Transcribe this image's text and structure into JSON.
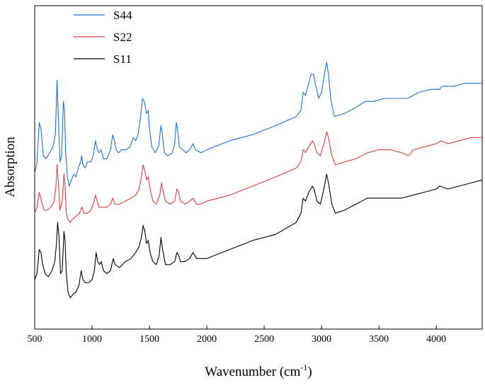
{
  "chart_data": {
    "type": "line",
    "title": "",
    "xlabel": "Wavenumber (cm",
    "xlabel_sup": "-1",
    "xlabel_end": ")",
    "ylabel": "Absorption",
    "xlim": [
      500,
      4400
    ],
    "ylim": [
      0,
      1
    ],
    "x_ticks": [
      "500",
      "1000",
      "1500",
      "2000",
      "2500",
      "3000",
      "3500",
      "4000"
    ],
    "grid": false,
    "legend_position": "top-left",
    "series": [
      {
        "name": "S44",
        "color": "#1f6fd6",
        "points": [
          [
            500,
            0.49
          ],
          [
            520,
            0.53
          ],
          [
            540,
            0.66
          ],
          [
            555,
            0.64
          ],
          [
            575,
            0.55
          ],
          [
            600,
            0.54
          ],
          [
            630,
            0.56
          ],
          [
            660,
            0.58
          ],
          [
            680,
            0.62
          ],
          [
            695,
            0.8
          ],
          [
            705,
            0.69
          ],
          [
            720,
            0.53
          ],
          [
            735,
            0.55
          ],
          [
            750,
            0.73
          ],
          [
            760,
            0.7
          ],
          [
            770,
            0.56
          ],
          [
            785,
            0.48
          ],
          [
            800,
            0.45
          ],
          [
            820,
            0.47
          ],
          [
            840,
            0.49
          ],
          [
            860,
            0.48
          ],
          [
            880,
            0.51
          ],
          [
            900,
            0.53
          ],
          [
            910,
            0.55
          ],
          [
            920,
            0.52
          ],
          [
            940,
            0.51
          ],
          [
            960,
            0.53
          ],
          [
            990,
            0.53
          ],
          [
            1010,
            0.55
          ],
          [
            1030,
            0.6
          ],
          [
            1040,
            0.58
          ],
          [
            1060,
            0.56
          ],
          [
            1080,
            0.57
          ],
          [
            1100,
            0.54
          ],
          [
            1130,
            0.54
          ],
          [
            1160,
            0.57
          ],
          [
            1180,
            0.62
          ],
          [
            1195,
            0.6
          ],
          [
            1210,
            0.57
          ],
          [
            1230,
            0.56
          ],
          [
            1260,
            0.57
          ],
          [
            1300,
            0.57
          ],
          [
            1330,
            0.58
          ],
          [
            1360,
            0.61
          ],
          [
            1380,
            0.6
          ],
          [
            1400,
            0.62
          ],
          [
            1420,
            0.67
          ],
          [
            1440,
            0.74
          ],
          [
            1455,
            0.73
          ],
          [
            1475,
            0.69
          ],
          [
            1490,
            0.7
          ],
          [
            1500,
            0.64
          ],
          [
            1520,
            0.58
          ],
          [
            1550,
            0.56
          ],
          [
            1580,
            0.58
          ],
          [
            1600,
            0.65
          ],
          [
            1610,
            0.63
          ],
          [
            1630,
            0.56
          ],
          [
            1660,
            0.55
          ],
          [
            1700,
            0.56
          ],
          [
            1720,
            0.59
          ],
          [
            1735,
            0.66
          ],
          [
            1745,
            0.64
          ],
          [
            1760,
            0.58
          ],
          [
            1790,
            0.57
          ],
          [
            1820,
            0.56
          ],
          [
            1850,
            0.57
          ],
          [
            1880,
            0.59
          ],
          [
            1900,
            0.57
          ],
          [
            1950,
            0.56
          ],
          [
            2000,
            0.57
          ],
          [
            2200,
            0.6
          ],
          [
            2400,
            0.62
          ],
          [
            2600,
            0.65
          ],
          [
            2780,
            0.68
          ],
          [
            2820,
            0.7
          ],
          [
            2840,
            0.76
          ],
          [
            2860,
            0.75
          ],
          [
            2880,
            0.78
          ],
          [
            2910,
            0.82
          ],
          [
            2930,
            0.82
          ],
          [
            2950,
            0.78
          ],
          [
            2975,
            0.74
          ],
          [
            3000,
            0.76
          ],
          [
            3025,
            0.82
          ],
          [
            3045,
            0.86
          ],
          [
            3060,
            0.82
          ],
          [
            3080,
            0.74
          ],
          [
            3110,
            0.68
          ],
          [
            3200,
            0.69
          ],
          [
            3300,
            0.71
          ],
          [
            3380,
            0.73
          ],
          [
            3450,
            0.73
          ],
          [
            3550,
            0.74
          ],
          [
            3650,
            0.74
          ],
          [
            3750,
            0.74
          ],
          [
            3850,
            0.76
          ],
          [
            3950,
            0.77
          ],
          [
            4030,
            0.77
          ],
          [
            4050,
            0.78
          ],
          [
            4070,
            0.78
          ],
          [
            4150,
            0.78
          ],
          [
            4250,
            0.79
          ],
          [
            4300,
            0.79
          ],
          [
            4350,
            0.79
          ],
          [
            4400,
            0.79
          ]
        ]
      },
      {
        "name": "S22",
        "color": "#e03c3c",
        "points": [
          [
            500,
            0.36
          ],
          [
            520,
            0.38
          ],
          [
            540,
            0.43
          ],
          [
            560,
            0.4
          ],
          [
            580,
            0.37
          ],
          [
            610,
            0.37
          ],
          [
            640,
            0.38
          ],
          [
            670,
            0.4
          ],
          [
            685,
            0.45
          ],
          [
            695,
            0.52
          ],
          [
            705,
            0.47
          ],
          [
            720,
            0.37
          ],
          [
            740,
            0.4
          ],
          [
            755,
            0.49
          ],
          [
            765,
            0.45
          ],
          [
            775,
            0.36
          ],
          [
            790,
            0.34
          ],
          [
            810,
            0.33
          ],
          [
            830,
            0.34
          ],
          [
            860,
            0.35
          ],
          [
            890,
            0.36
          ],
          [
            910,
            0.38
          ],
          [
            930,
            0.36
          ],
          [
            960,
            0.36
          ],
          [
            990,
            0.37
          ],
          [
            1010,
            0.39
          ],
          [
            1030,
            0.42
          ],
          [
            1045,
            0.4
          ],
          [
            1060,
            0.38
          ],
          [
            1090,
            0.38
          ],
          [
            1130,
            0.38
          ],
          [
            1160,
            0.39
          ],
          [
            1180,
            0.41
          ],
          [
            1200,
            0.39
          ],
          [
            1240,
            0.39
          ],
          [
            1290,
            0.4
          ],
          [
            1340,
            0.41
          ],
          [
            1380,
            0.42
          ],
          [
            1410,
            0.44
          ],
          [
            1430,
            0.48
          ],
          [
            1445,
            0.52
          ],
          [
            1460,
            0.5
          ],
          [
            1475,
            0.47
          ],
          [
            1490,
            0.48
          ],
          [
            1505,
            0.44
          ],
          [
            1530,
            0.4
          ],
          [
            1560,
            0.39
          ],
          [
            1590,
            0.42
          ],
          [
            1605,
            0.46
          ],
          [
            1620,
            0.43
          ],
          [
            1640,
            0.4
          ],
          [
            1680,
            0.39
          ],
          [
            1720,
            0.4
          ],
          [
            1740,
            0.44
          ],
          [
            1755,
            0.43
          ],
          [
            1770,
            0.4
          ],
          [
            1810,
            0.39
          ],
          [
            1850,
            0.4
          ],
          [
            1880,
            0.41
          ],
          [
            1910,
            0.39
          ],
          [
            1950,
            0.39
          ],
          [
            2000,
            0.4
          ],
          [
            2200,
            0.42
          ],
          [
            2400,
            0.45
          ],
          [
            2600,
            0.48
          ],
          [
            2780,
            0.51
          ],
          [
            2820,
            0.53
          ],
          [
            2840,
            0.57
          ],
          [
            2860,
            0.56
          ],
          [
            2890,
            0.58
          ],
          [
            2920,
            0.6
          ],
          [
            2935,
            0.59
          ],
          [
            2960,
            0.56
          ],
          [
            2990,
            0.55
          ],
          [
            3020,
            0.59
          ],
          [
            3045,
            0.63
          ],
          [
            3060,
            0.61
          ],
          [
            3090,
            0.55
          ],
          [
            3120,
            0.52
          ],
          [
            3200,
            0.53
          ],
          [
            3300,
            0.54
          ],
          [
            3400,
            0.56
          ],
          [
            3500,
            0.57
          ],
          [
            3600,
            0.57
          ],
          [
            3700,
            0.56
          ],
          [
            3760,
            0.55
          ],
          [
            3800,
            0.57
          ],
          [
            3900,
            0.58
          ],
          [
            4000,
            0.59
          ],
          [
            4040,
            0.6
          ],
          [
            4100,
            0.59
          ],
          [
            4200,
            0.6
          ],
          [
            4300,
            0.61
          ],
          [
            4400,
            0.61
          ]
        ]
      },
      {
        "name": "S11",
        "color": "#000000",
        "points": [
          [
            500,
            0.14
          ],
          [
            520,
            0.16
          ],
          [
            540,
            0.24
          ],
          [
            555,
            0.23
          ],
          [
            570,
            0.19
          ],
          [
            590,
            0.16
          ],
          [
            620,
            0.15
          ],
          [
            650,
            0.17
          ],
          [
            675,
            0.2
          ],
          [
            690,
            0.26
          ],
          [
            700,
            0.33
          ],
          [
            712,
            0.28
          ],
          [
            725,
            0.16
          ],
          [
            740,
            0.17
          ],
          [
            755,
            0.3
          ],
          [
            765,
            0.27
          ],
          [
            775,
            0.16
          ],
          [
            790,
            0.1
          ],
          [
            810,
            0.08
          ],
          [
            830,
            0.09
          ],
          [
            860,
            0.1
          ],
          [
            885,
            0.12
          ],
          [
            905,
            0.17
          ],
          [
            920,
            0.14
          ],
          [
            940,
            0.13
          ],
          [
            970,
            0.13
          ],
          [
            1000,
            0.14
          ],
          [
            1020,
            0.17
          ],
          [
            1035,
            0.23
          ],
          [
            1050,
            0.2
          ],
          [
            1065,
            0.19
          ],
          [
            1080,
            0.2
          ],
          [
            1100,
            0.17
          ],
          [
            1130,
            0.16
          ],
          [
            1160,
            0.17
          ],
          [
            1185,
            0.21
          ],
          [
            1200,
            0.19
          ],
          [
            1240,
            0.18
          ],
          [
            1290,
            0.2
          ],
          [
            1340,
            0.21
          ],
          [
            1380,
            0.23
          ],
          [
            1410,
            0.25
          ],
          [
            1430,
            0.28
          ],
          [
            1445,
            0.32
          ],
          [
            1460,
            0.3
          ],
          [
            1475,
            0.26
          ],
          [
            1490,
            0.27
          ],
          [
            1505,
            0.23
          ],
          [
            1530,
            0.2
          ],
          [
            1560,
            0.19
          ],
          [
            1585,
            0.22
          ],
          [
            1600,
            0.28
          ],
          [
            1615,
            0.24
          ],
          [
            1640,
            0.19
          ],
          [
            1680,
            0.19
          ],
          [
            1720,
            0.2
          ],
          [
            1740,
            0.23
          ],
          [
            1755,
            0.22
          ],
          [
            1770,
            0.2
          ],
          [
            1810,
            0.2
          ],
          [
            1850,
            0.21
          ],
          [
            1880,
            0.23
          ],
          [
            1910,
            0.21
          ],
          [
            1950,
            0.21
          ],
          [
            2000,
            0.21
          ],
          [
            2200,
            0.24
          ],
          [
            2400,
            0.27
          ],
          [
            2600,
            0.29
          ],
          [
            2780,
            0.33
          ],
          [
            2820,
            0.36
          ],
          [
            2840,
            0.41
          ],
          [
            2860,
            0.4
          ],
          [
            2890,
            0.43
          ],
          [
            2920,
            0.45
          ],
          [
            2935,
            0.44
          ],
          [
            2960,
            0.4
          ],
          [
            2990,
            0.39
          ],
          [
            3020,
            0.44
          ],
          [
            3045,
            0.49
          ],
          [
            3060,
            0.46
          ],
          [
            3090,
            0.39
          ],
          [
            3120,
            0.36
          ],
          [
            3200,
            0.37
          ],
          [
            3300,
            0.39
          ],
          [
            3400,
            0.41
          ],
          [
            3500,
            0.41
          ],
          [
            3600,
            0.41
          ],
          [
            3700,
            0.41
          ],
          [
            3800,
            0.42
          ],
          [
            3900,
            0.43
          ],
          [
            4000,
            0.44
          ],
          [
            4030,
            0.45
          ],
          [
            4100,
            0.44
          ],
          [
            4200,
            0.45
          ],
          [
            4300,
            0.46
          ],
          [
            4400,
            0.47
          ]
        ]
      }
    ]
  }
}
